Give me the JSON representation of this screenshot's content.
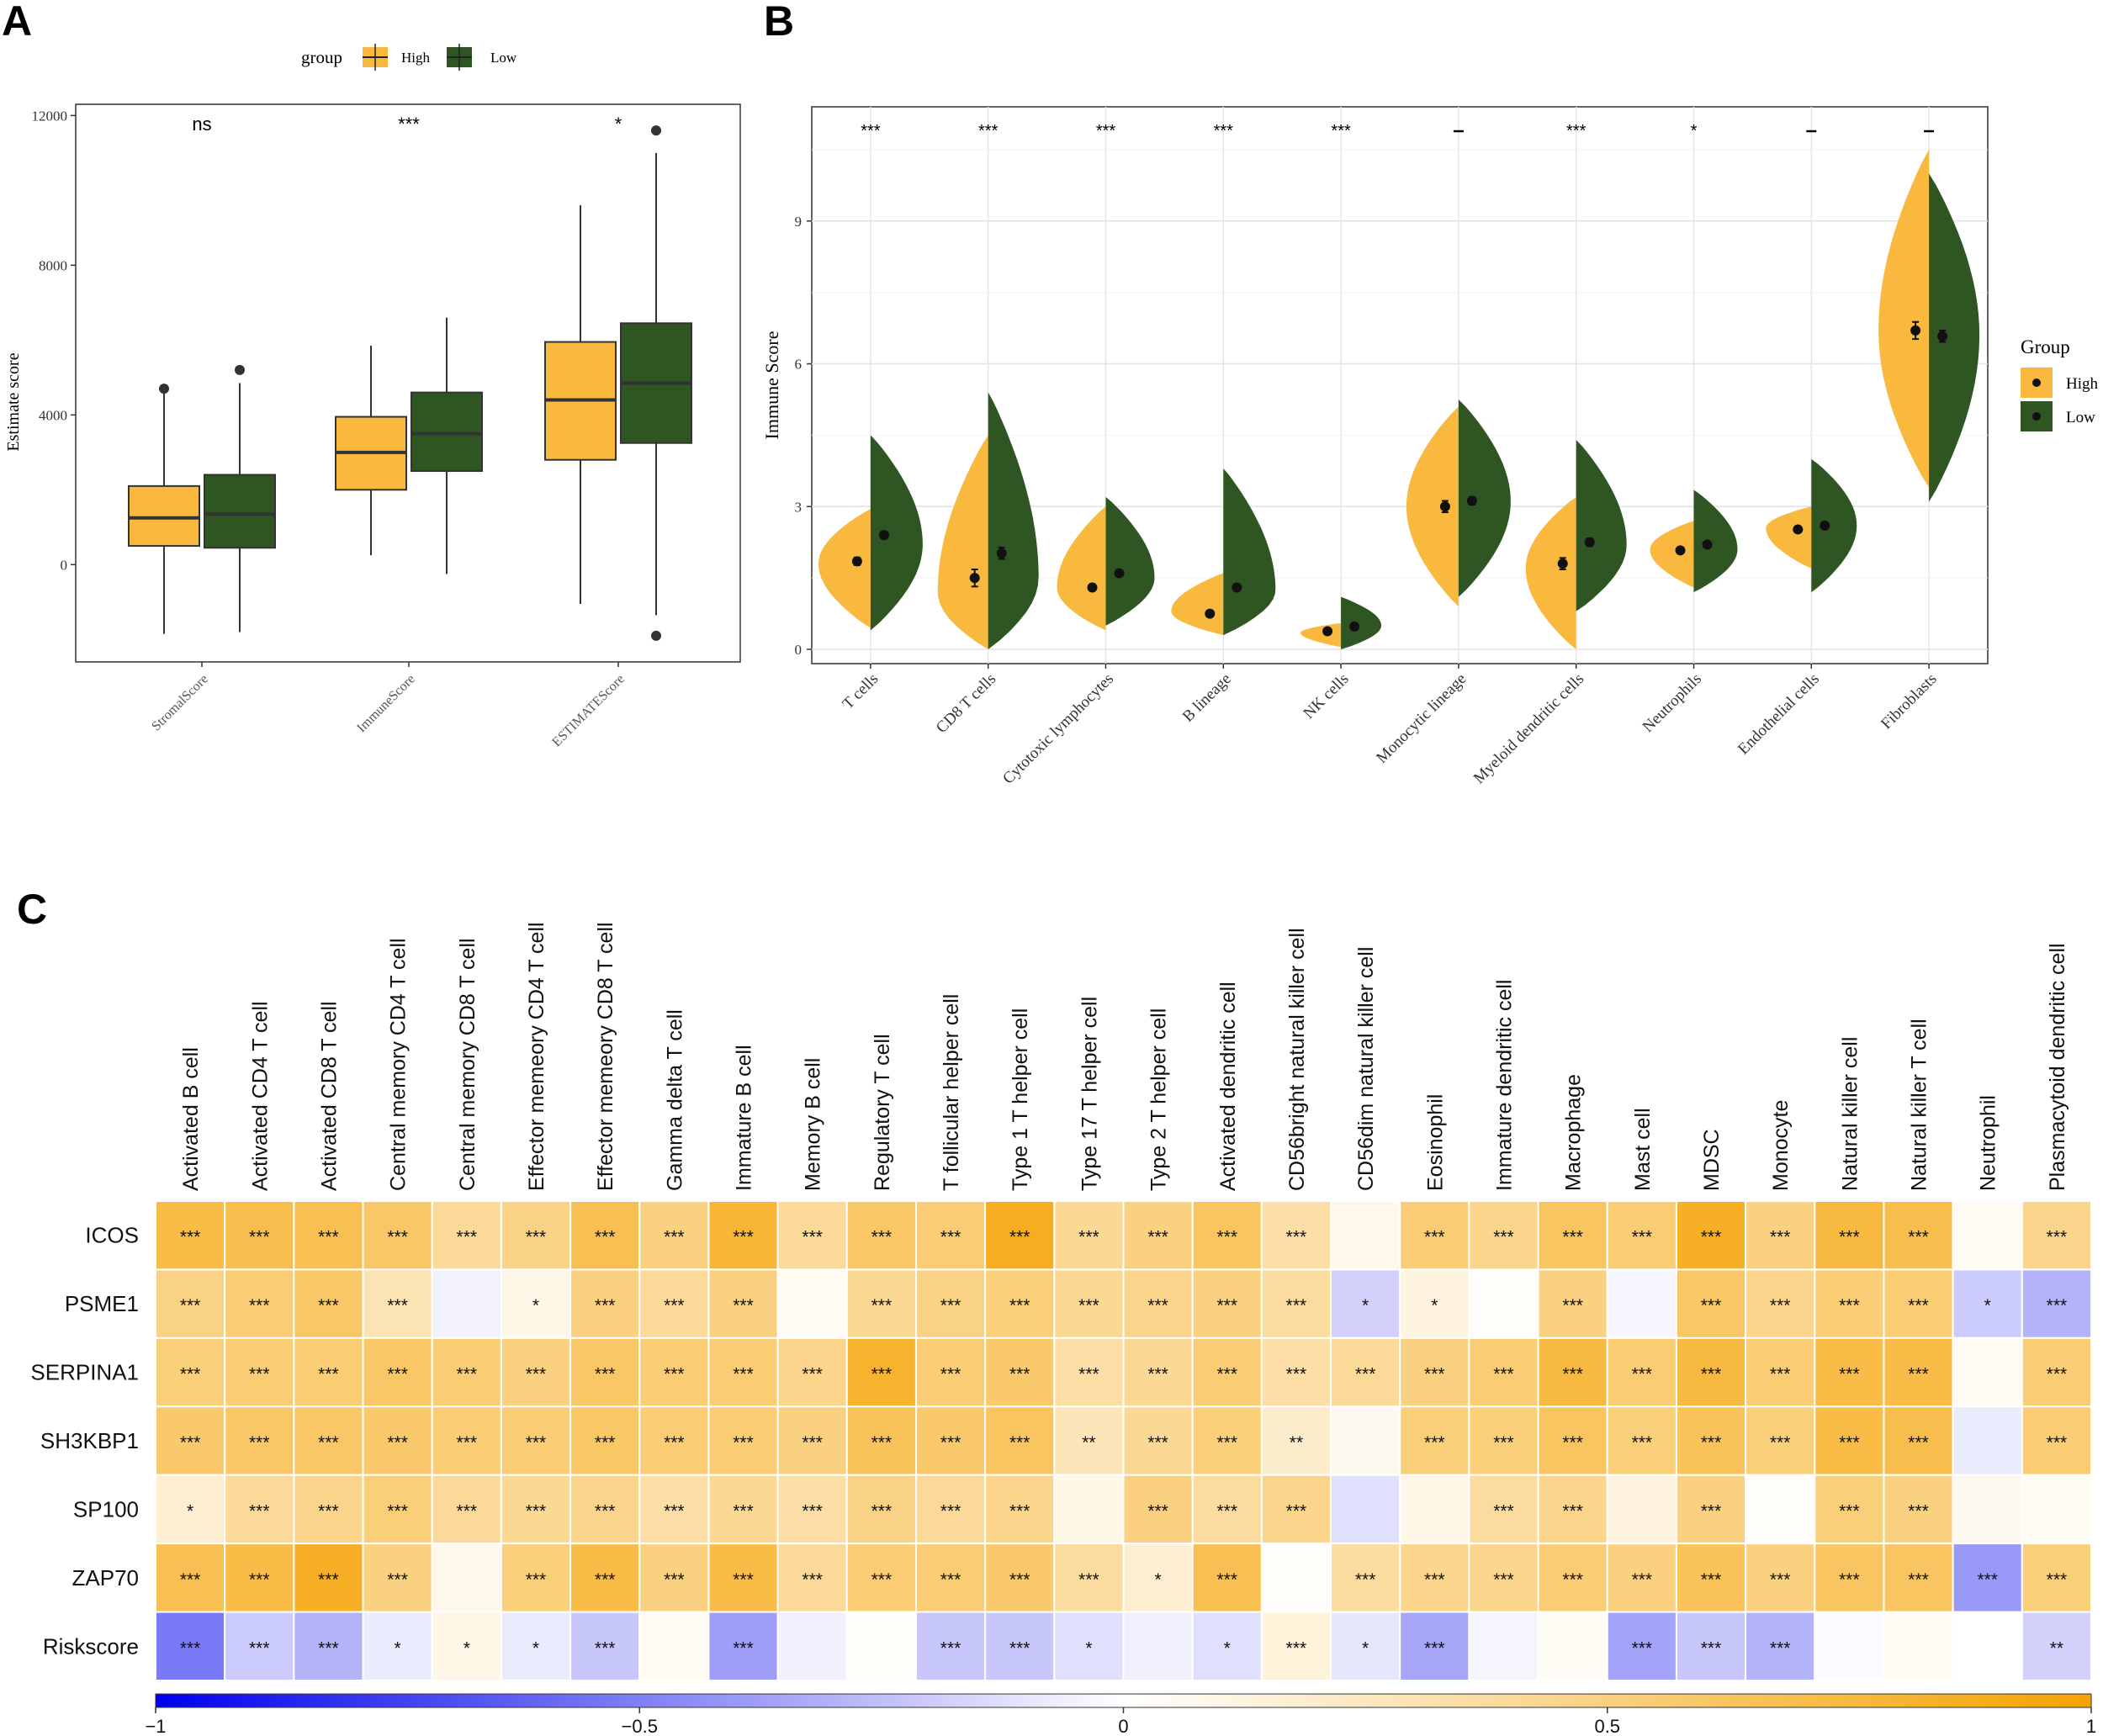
{
  "panels": {
    "a": "A",
    "b": "B",
    "c": "C"
  },
  "colors": {
    "high": "#F9B93F",
    "low": "#2E5522",
    "neg": "#0000EE",
    "mid": "#FFFFFF",
    "pos": "#F5A200"
  },
  "chart_data": [
    {
      "type": "boxplot",
      "panel": "A",
      "legend": {
        "title": "group",
        "items": [
          "High",
          "Low"
        ],
        "placement": "top"
      },
      "ylabel": "Estimate score",
      "ylim": [
        -2600,
        12300
      ],
      "yticks": [
        0,
        4000,
        8000,
        12000
      ],
      "categories": [
        "StromalScore",
        "ImmuneScore",
        "ESTIMATEScore"
      ],
      "significance": [
        "ns",
        "***",
        "*"
      ],
      "series": [
        {
          "name": "High",
          "boxes": [
            {
              "min": -1850,
              "q1": 500,
              "median": 1250,
              "q3": 2100,
              "max": 4600,
              "outliers": [
                4700
              ]
            },
            {
              "min": 250,
              "q1": 2000,
              "median": 3000,
              "q3": 3950,
              "max": 5850,
              "outliers": []
            },
            {
              "min": -1050,
              "q1": 2800,
              "median": 4400,
              "q3": 5950,
              "max": 9600,
              "outliers": []
            }
          ]
        },
        {
          "name": "Low",
          "boxes": [
            {
              "min": -1800,
              "q1": 450,
              "median": 1350,
              "q3": 2400,
              "max": 4850,
              "outliers": [
                5200
              ]
            },
            {
              "min": -250,
              "q1": 2500,
              "median": 3500,
              "q3": 4600,
              "max": 6600,
              "outliers": []
            },
            {
              "min": -1350,
              "q1": 3250,
              "median": 4850,
              "q3": 6450,
              "max": 11000,
              "outliers": [
                11600,
                -1900
              ]
            }
          ]
        }
      ]
    },
    {
      "type": "split-violin",
      "panel": "B",
      "legend": {
        "title": "Group",
        "items": [
          "High",
          "Low"
        ],
        "placement": "right"
      },
      "ylabel": "Immune Score",
      "ylim": [
        -0.3,
        11.4
      ],
      "yticks": [
        0,
        3,
        6,
        9
      ],
      "categories": [
        "T cells",
        "CD8 T cells",
        "Cytotoxic lymphocytes",
        "B lineage",
        "NK cells",
        "Monocytic lineage",
        "Myeloid dendritic cells",
        "Neutrophils",
        "Endothelial cells",
        "Fibroblasts"
      ],
      "significance": [
        "***",
        "***",
        "***",
        "***",
        "***",
        "",
        "***",
        "*",
        "",
        ""
      ],
      "series": [
        {
          "name": "High",
          "min": [
            0.45,
            0.0,
            0.4,
            0.3,
            0.05,
            0.9,
            0.0,
            1.3,
            1.7,
            3.4
          ],
          "max": [
            2.95,
            4.5,
            3.0,
            1.6,
            0.55,
            5.1,
            3.2,
            2.7,
            3.0,
            10.5
          ],
          "mode": [
            1.8,
            1.2,
            1.3,
            0.8,
            0.35,
            3.0,
            1.7,
            2.1,
            2.55,
            6.7
          ],
          "mean": [
            1.85,
            1.5,
            1.3,
            0.75,
            0.38,
            3.0,
            1.8,
            2.08,
            2.52,
            6.7
          ],
          "err": [
            0.08,
            0.18,
            0.07,
            0.05,
            0.03,
            0.12,
            0.12,
            0.05,
            0.06,
            0.18
          ]
        },
        {
          "name": "Low",
          "min": [
            0.4,
            0.0,
            0.5,
            0.3,
            0.0,
            1.1,
            0.8,
            1.2,
            1.2,
            3.1
          ],
          "max": [
            4.5,
            5.4,
            3.2,
            3.8,
            1.1,
            5.25,
            4.4,
            3.35,
            4.0,
            10.0
          ],
          "mode": [
            2.2,
            1.5,
            1.5,
            1.25,
            0.5,
            3.1,
            2.2,
            2.1,
            2.6,
            6.6
          ],
          "mean": [
            2.4,
            2.02,
            1.6,
            1.3,
            0.48,
            3.12,
            2.25,
            2.2,
            2.6,
            6.58
          ],
          "err": [
            0.07,
            0.12,
            0.06,
            0.05,
            0.03,
            0.08,
            0.08,
            0.05,
            0.05,
            0.12
          ]
        }
      ]
    },
    {
      "type": "heatmap",
      "panel": "C",
      "columns": [
        "Activated B cell",
        "Activated CD4 T cell",
        "Activated CD8 T cell",
        "Central memory CD4 T cell",
        "Central memory CD8 T cell",
        "Effector memeory CD4 T cell",
        "Effector memeory CD8 T cell",
        "Gamma delta T cell",
        "Immature  B cell",
        "Memory B cell",
        "Regulatory T cell",
        "T follicular helper cell",
        "Type 1 T helper cell",
        "Type 17 T helper cell",
        "Type 2 T helper cell",
        "Activated dendritic cell",
        "CD56bright natural killer cell",
        "CD56dim natural killer cell",
        "Eosinophil",
        "Immature dendritic cell",
        "Macrophage",
        "Mast cell",
        "MDSC",
        "Monocyte",
        "Natural killer cell",
        "Natural killer T cell",
        "Neutrophil",
        "Plasmacytoid dendritic cell"
      ],
      "rows": [
        "ICOS",
        "PSME1",
        "SERPINA1",
        "SH3KBP1",
        "SP100",
        "ZAP70",
        "Riskscore"
      ],
      "values": [
        [
          0.72,
          0.7,
          0.68,
          0.6,
          0.4,
          0.48,
          0.68,
          0.5,
          0.78,
          0.4,
          0.6,
          0.55,
          0.88,
          0.42,
          0.5,
          0.62,
          0.35,
          0.08,
          0.55,
          0.45,
          0.62,
          0.55,
          0.85,
          0.5,
          0.75,
          0.7,
          0.05,
          0.45
        ],
        [
          0.48,
          0.55,
          0.6,
          0.3,
          -0.05,
          0.1,
          0.5,
          0.4,
          0.5,
          0.05,
          0.42,
          0.48,
          0.52,
          0.42,
          0.45,
          0.5,
          0.38,
          -0.18,
          0.12,
          0.02,
          0.5,
          -0.04,
          0.6,
          0.45,
          0.55,
          0.55,
          -0.2,
          -0.3
        ],
        [
          0.52,
          0.55,
          0.55,
          0.6,
          0.55,
          0.5,
          0.6,
          0.55,
          0.55,
          0.45,
          0.82,
          0.55,
          0.58,
          0.35,
          0.42,
          0.55,
          0.35,
          0.4,
          0.5,
          0.55,
          0.75,
          0.55,
          0.75,
          0.55,
          0.72,
          0.72,
          0.05,
          0.55
        ],
        [
          0.58,
          0.6,
          0.6,
          0.58,
          0.55,
          0.55,
          0.6,
          0.55,
          0.55,
          0.5,
          0.65,
          0.58,
          0.62,
          0.28,
          0.42,
          0.52,
          0.2,
          0.06,
          0.52,
          0.52,
          0.62,
          0.52,
          0.65,
          0.52,
          0.72,
          0.7,
          -0.08,
          0.55
        ],
        [
          0.18,
          0.4,
          0.45,
          0.52,
          0.4,
          0.42,
          0.45,
          0.35,
          0.42,
          0.35,
          0.48,
          0.4,
          0.45,
          0.1,
          0.5,
          0.38,
          0.45,
          -0.12,
          0.1,
          0.38,
          0.45,
          0.12,
          0.5,
          0.02,
          0.52,
          0.5,
          0.06,
          0.05
        ],
        [
          0.68,
          0.72,
          0.85,
          0.5,
          0.08,
          0.52,
          0.72,
          0.5,
          0.72,
          0.4,
          0.55,
          0.55,
          0.58,
          0.38,
          0.18,
          0.68,
          0.02,
          0.38,
          0.45,
          0.45,
          0.55,
          0.5,
          0.65,
          0.5,
          0.62,
          0.62,
          -0.4,
          0.52
        ],
        [
          -0.52,
          -0.2,
          -0.3,
          -0.08,
          0.1,
          -0.08,
          -0.22,
          0.05,
          -0.38,
          -0.06,
          0.02,
          -0.22,
          -0.22,
          -0.12,
          -0.06,
          -0.12,
          0.14,
          -0.1,
          -0.35,
          -0.04,
          0.04,
          -0.36,
          -0.22,
          -0.3,
          -0.02,
          0.05,
          0.0,
          -0.18
        ]
      ],
      "stars": [
        [
          "***",
          "***",
          "***",
          "***",
          "***",
          "***",
          "***",
          "***",
          "***",
          "***",
          "***",
          "***",
          "***",
          "***",
          "***",
          "***",
          "***",
          "",
          "***",
          "***",
          "***",
          "***",
          "***",
          "***",
          "***",
          "***",
          "",
          "***"
        ],
        [
          "***",
          "***",
          "***",
          "***",
          "",
          "*",
          "***",
          "***",
          "***",
          "",
          "***",
          "***",
          "***",
          "***",
          "***",
          "***",
          "***",
          "*",
          "*",
          "",
          "***",
          "",
          "***",
          "***",
          "***",
          "***",
          "*",
          "***"
        ],
        [
          "***",
          "***",
          "***",
          "***",
          "***",
          "***",
          "***",
          "***",
          "***",
          "***",
          "***",
          "***",
          "***",
          "***",
          "***",
          "***",
          "***",
          "***",
          "***",
          "***",
          "***",
          "***",
          "***",
          "***",
          "***",
          "***",
          "",
          "***"
        ],
        [
          "***",
          "***",
          "***",
          "***",
          "***",
          "***",
          "***",
          "***",
          "***",
          "***",
          "***",
          "***",
          "***",
          "**",
          "***",
          "***",
          "**",
          "",
          "***",
          "***",
          "***",
          "***",
          "***",
          "***",
          "***",
          "***",
          "",
          "***"
        ],
        [
          "*",
          "***",
          "***",
          "***",
          "***",
          "***",
          "***",
          "***",
          "***",
          "***",
          "***",
          "***",
          "***",
          "",
          "***",
          "***",
          "***",
          "",
          "",
          "***",
          "***",
          "",
          "***",
          "",
          "***",
          "***",
          "",
          ""
        ],
        [
          "***",
          "***",
          "***",
          "***",
          "",
          "***",
          "***",
          "***",
          "***",
          "***",
          "***",
          "***",
          "***",
          "***",
          "*",
          "***",
          "",
          "***",
          "***",
          "***",
          "***",
          "***",
          "***",
          "***",
          "***",
          "***",
          "***",
          "***"
        ],
        [
          "***",
          "***",
          "***",
          "*",
          "*",
          "*",
          "***",
          "",
          "***",
          "",
          "",
          "***",
          "***",
          "*",
          "",
          "*",
          "***",
          "*",
          "***",
          "",
          "",
          "***",
          "***",
          "***",
          "",
          "",
          "",
          "**"
        ]
      ],
      "colorbar": {
        "ticks": [
          -1,
          -0.5,
          0,
          0.5,
          1
        ],
        "labels": [
          "−1",
          "−0.5",
          "0",
          "0.5",
          "1"
        ]
      }
    }
  ]
}
